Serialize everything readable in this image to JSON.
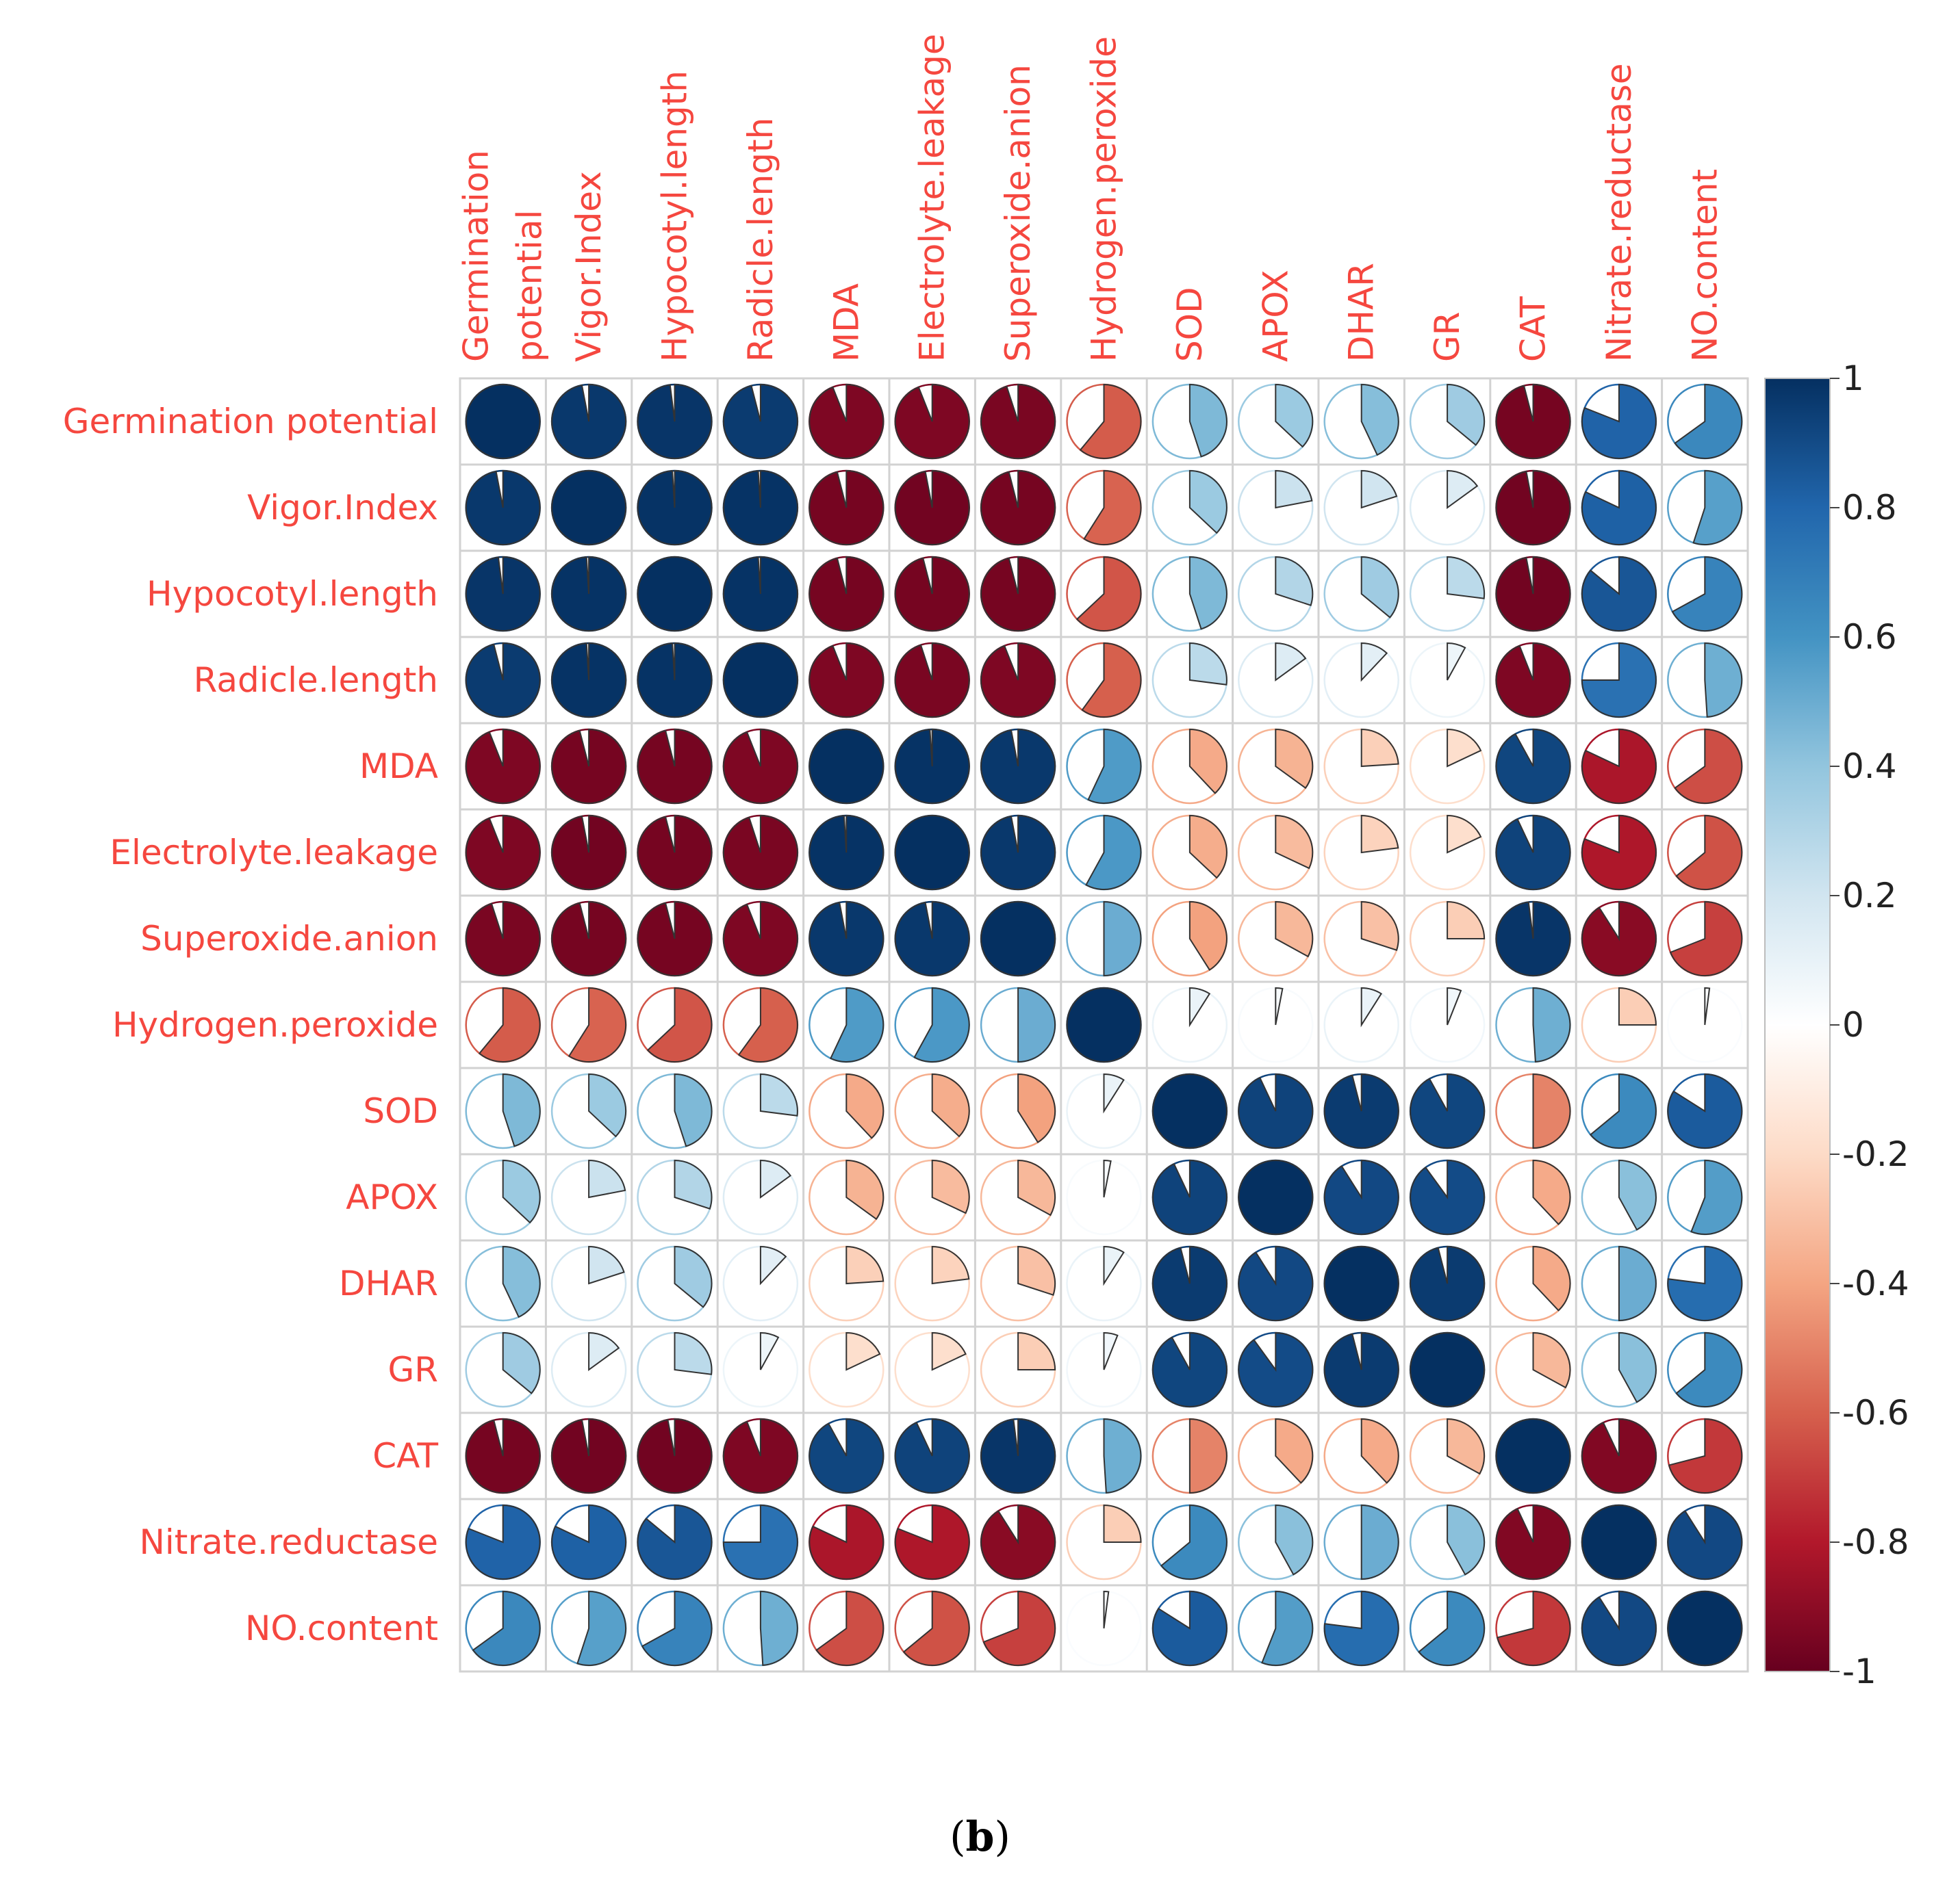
{
  "chart_data": {
    "type": "heatmap",
    "style": "pie-correlogram",
    "title": "",
    "variables": [
      "Germination potential",
      "Vigor.Index",
      "Hypocotyl.length",
      "Radicle.length",
      "MDA",
      "Electrolyte.leakage",
      "Superoxide.anion",
      "Hydrogen.peroxide",
      "SOD",
      "APOX",
      "DHAR",
      "GR",
      "CAT",
      "Nitrate.reductase",
      "NO.content"
    ],
    "column_labels": [
      [
        "Germination",
        "potential"
      ],
      [
        "Vigor.Index"
      ],
      [
        "Hypocotyl.length"
      ],
      [
        "Radicle.length"
      ],
      [
        "MDA"
      ],
      [
        "Electrolyte.leakage"
      ],
      [
        "Superoxide.anion"
      ],
      [
        "Hydrogen.peroxide"
      ],
      [
        "SOD"
      ],
      [
        "APOX"
      ],
      [
        "DHAR"
      ],
      [
        "GR"
      ],
      [
        "CAT"
      ],
      [
        "Nitrate.reductase"
      ],
      [
        "NO.content"
      ]
    ],
    "matrix": [
      [
        1.0,
        0.97,
        0.98,
        0.96,
        -0.94,
        -0.94,
        -0.95,
        -0.61,
        0.45,
        0.37,
        0.43,
        0.36,
        -0.96,
        0.81,
        0.65
      ],
      [
        0.97,
        1.0,
        0.99,
        0.99,
        -0.96,
        -0.97,
        -0.96,
        -0.59,
        0.37,
        0.22,
        0.2,
        0.15,
        -0.97,
        0.82,
        0.55
      ],
      [
        0.98,
        0.99,
        1.0,
        0.99,
        -0.96,
        -0.96,
        -0.96,
        -0.63,
        0.45,
        0.3,
        0.36,
        0.27,
        -0.97,
        0.86,
        0.67
      ],
      [
        0.96,
        0.99,
        0.99,
        1.0,
        -0.94,
        -0.95,
        -0.94,
        -0.6,
        0.27,
        0.15,
        0.12,
        0.08,
        -0.94,
        0.75,
        0.49
      ],
      [
        -0.94,
        -0.96,
        -0.96,
        -0.94,
        1.0,
        0.99,
        0.97,
        0.57,
        -0.38,
        -0.35,
        -0.24,
        -0.18,
        0.92,
        -0.82,
        -0.65
      ],
      [
        -0.94,
        -0.97,
        -0.96,
        -0.95,
        0.99,
        1.0,
        0.97,
        0.58,
        -0.37,
        -0.32,
        -0.23,
        -0.18,
        0.93,
        -0.81,
        -0.64
      ],
      [
        -0.95,
        -0.96,
        -0.96,
        -0.94,
        0.97,
        0.97,
        1.0,
        0.5,
        -0.41,
        -0.33,
        -0.3,
        -0.25,
        0.98,
        -0.91,
        -0.69
      ],
      [
        -0.61,
        -0.59,
        -0.63,
        -0.6,
        0.57,
        0.58,
        0.5,
        1.0,
        0.09,
        0.03,
        0.09,
        0.06,
        0.49,
        -0.25,
        0.02
      ],
      [
        0.45,
        0.37,
        0.45,
        0.27,
        -0.38,
        -0.37,
        -0.41,
        0.09,
        1.0,
        0.93,
        0.96,
        0.92,
        -0.5,
        0.64,
        0.84
      ],
      [
        0.37,
        0.22,
        0.3,
        0.15,
        -0.35,
        -0.32,
        -0.33,
        0.03,
        0.93,
        1.0,
        0.91,
        0.9,
        -0.38,
        0.42,
        0.56
      ],
      [
        0.43,
        0.2,
        0.36,
        0.12,
        -0.24,
        -0.23,
        -0.3,
        0.09,
        0.96,
        0.91,
        1.0,
        0.96,
        -0.38,
        0.5,
        0.77
      ],
      [
        0.36,
        0.15,
        0.27,
        0.08,
        -0.18,
        -0.18,
        -0.25,
        0.06,
        0.92,
        0.9,
        0.96,
        1.0,
        -0.33,
        0.42,
        0.64
      ],
      [
        -0.96,
        -0.97,
        -0.97,
        -0.94,
        0.92,
        0.93,
        0.98,
        0.49,
        -0.5,
        -0.38,
        -0.38,
        -0.33,
        1.0,
        -0.93,
        -0.71
      ],
      [
        0.81,
        0.82,
        0.86,
        0.75,
        -0.82,
        -0.81,
        -0.91,
        -0.25,
        0.64,
        0.42,
        0.5,
        0.42,
        -0.93,
        1.0,
        0.91
      ],
      [
        0.65,
        0.55,
        0.67,
        0.49,
        -0.65,
        -0.64,
        -0.69,
        0.02,
        0.84,
        0.56,
        0.77,
        0.64,
        -0.71,
        0.91,
        1.0
      ]
    ],
    "colorbar": {
      "range": [
        -1,
        1
      ],
      "ticks": [
        1,
        0.8,
        0.6,
        0.4,
        0.2,
        0,
        -0.2,
        -0.4,
        -0.6,
        -0.8,
        -1
      ],
      "tick_labels": [
        "1",
        "0.8",
        "0.6",
        "0.4",
        "0.2",
        "0",
        "-0.2",
        "-0.4",
        "-0.6",
        "-0.8",
        "-1"
      ]
    },
    "colors": {
      "label": "#f5473f",
      "grid": "#d2d2d2",
      "pie_edge": "#333333",
      "scale": [
        "#67001F",
        "#B2182B",
        "#D6604D",
        "#F4A582",
        "#FDDBC7",
        "#FFFFFF",
        "#D1E5F0",
        "#92C5DE",
        "#4393C3",
        "#2166AC",
        "#053061"
      ]
    }
  },
  "caption": {
    "open": "(",
    "letter": "b",
    "close": ")"
  }
}
